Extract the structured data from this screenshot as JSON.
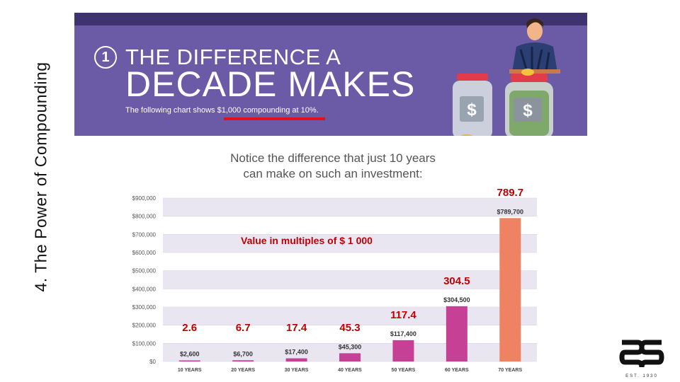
{
  "slide": {
    "side_title": "4. The Power of Compounding",
    "value_note": "Value in multiples of $ 1 000",
    "logo_tagline": "EST. 1930"
  },
  "banner": {
    "number": "1",
    "headline_line1": "THE DIFFERENCE A",
    "headline_line2": "DECADE MAKES",
    "subtitle": "The following chart shows $1,000 compounding at 10%.",
    "jar_symbol_left": "$",
    "jar_symbol_right": "$"
  },
  "notice": {
    "line1": "Notice the difference that just 10 years",
    "line2": "can make on such an investment:"
  },
  "colors": {
    "banner_bg": "#6b5aa6",
    "accent_red": "#c00000",
    "underline": "#e0101c",
    "bar_pink": "#c64096",
    "bar_orange": "#ef8262",
    "band_light": "#e9e6f2"
  },
  "chart_data": {
    "type": "bar",
    "categories": [
      "10 YEARS",
      "20 YEARS",
      "30 YEARS",
      "40 YEARS",
      "50 YEARS",
      "60 YEARS",
      "70 YEARS"
    ],
    "values": [
      2600,
      6700,
      17400,
      45300,
      117400,
      304500,
      789700
    ],
    "value_labels": [
      "$2,600",
      "$6,700",
      "$17,400",
      "$45,300",
      "$117,400",
      "$304,500",
      "$789,700"
    ],
    "overlay_labels": [
      "2.6",
      "6.7",
      "17.4",
      "45.3",
      "117.4",
      "304.5",
      "789.7"
    ],
    "y_ticks": [
      "$0",
      "$100,000",
      "$200,000",
      "$300,000",
      "$400,000",
      "$500,000",
      "$600,000",
      "$700,000",
      "$800,000",
      "$900,000"
    ],
    "ylim": [
      0,
      900000
    ],
    "title": "",
    "xlabel": "",
    "ylabel": ""
  }
}
